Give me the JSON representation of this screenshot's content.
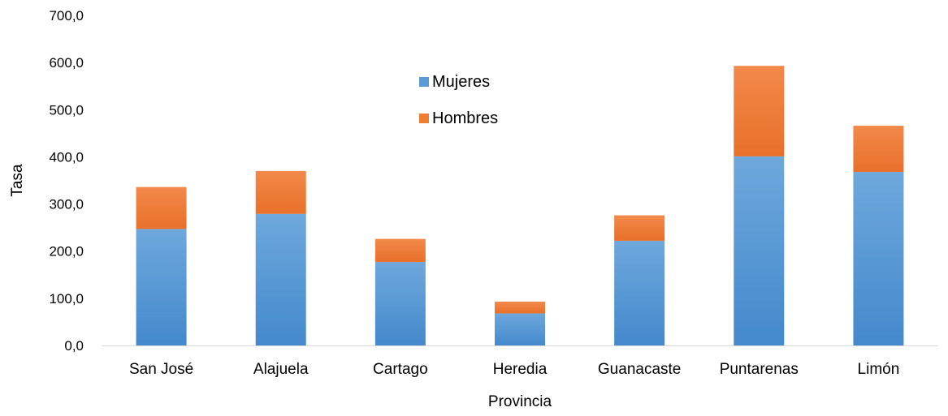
{
  "chart_data": {
    "type": "bar",
    "stacked": true,
    "title": "",
    "xlabel": "Provincia",
    "ylabel": "Tasa",
    "ylim": [
      0,
      700
    ],
    "yticks": [
      0,
      100,
      200,
      300,
      400,
      500,
      600,
      700
    ],
    "ytick_labels": [
      "0,0",
      "100,0",
      "200,0",
      "300,0",
      "400,0",
      "500,0",
      "600,0",
      "700,0"
    ],
    "categories": [
      "San José",
      "Alajuela",
      "Cartago",
      "Heredia",
      "Guanacaste",
      "Puntarenas",
      "Limón"
    ],
    "series": [
      {
        "name": "Mujeres",
        "color": "#5b9bd5",
        "values": [
          247,
          279,
          177,
          68,
          222,
          401,
          368
        ]
      },
      {
        "name": "Hombres",
        "color": "#ed7d31",
        "values": [
          89,
          91,
          49,
          25,
          54,
          192,
          98
        ]
      }
    ],
    "legend_position": "top-center",
    "grid": false
  }
}
